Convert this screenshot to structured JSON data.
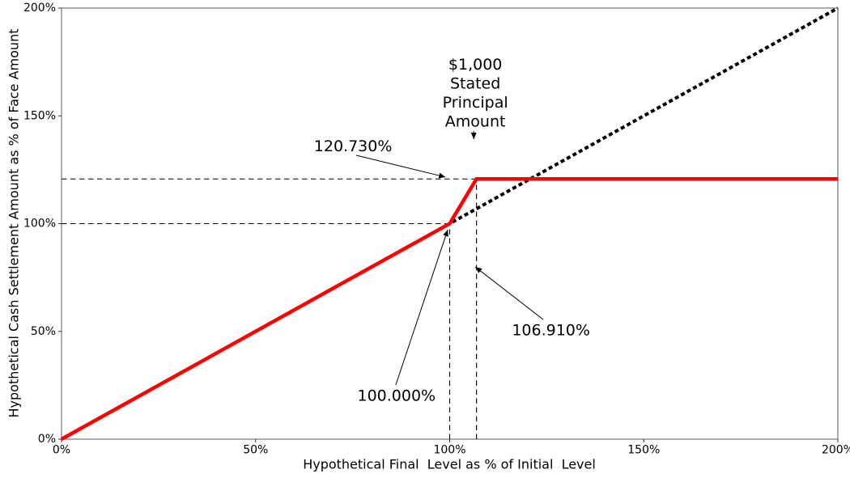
{
  "chart_data": {
    "type": "line",
    "title": "",
    "xlabel": "Hypothetical Final  Level as % of Initial  Level",
    "ylabel": "Hypothetical Cash Settlement Amount as % of Face Amount",
    "xlim": [
      0,
      200
    ],
    "ylim": [
      0,
      200
    ],
    "grid": false,
    "legend": false,
    "x_ticks": {
      "values": [
        0,
        50,
        100,
        150,
        200
      ],
      "labels": [
        "0%",
        "50%",
        "100%",
        "150%",
        "200%"
      ]
    },
    "y_ticks": {
      "values": [
        0,
        50,
        100,
        150,
        200
      ],
      "labels": [
        "0%",
        "50%",
        "100%",
        "150%",
        "200%"
      ]
    },
    "colors": {
      "payoff": "#ff0000",
      "reference": "#000000",
      "guide": "#000000",
      "spine": "#5a5a5a"
    },
    "series": [
      {
        "name": "reference-line-y-equals-x",
        "style": "dashed",
        "color": "#000000",
        "width": 4,
        "dash": "5 3.5",
        "points": [
          [
            0,
            0
          ],
          [
            200,
            200
          ]
        ]
      },
      {
        "name": "cash-settlement-payoff-line",
        "style": "solid",
        "color": "#ff0000",
        "width": 4.5,
        "dash": "",
        "points": [
          [
            0,
            0
          ],
          [
            100,
            100
          ],
          [
            106.91,
            120.73
          ],
          [
            200,
            120.73
          ]
        ]
      }
    ],
    "guides": [
      {
        "name": "cap-level-horizontal-guide",
        "from": [
          0,
          120.73
        ],
        "to": [
          106.91,
          120.73
        ]
      },
      {
        "name": "initial-level-horizontal-guide",
        "from": [
          0,
          100
        ],
        "to": [
          100,
          100
        ]
      },
      {
        "name": "initial-level-vertical-guide",
        "from": [
          100,
          0
        ],
        "to": [
          100,
          100
        ]
      },
      {
        "name": "cap-threshold-vertical-guide",
        "from": [
          106.91,
          0
        ],
        "to": [
          106.91,
          120.73
        ]
      }
    ],
    "annotations": [
      {
        "name": "annotation-cap-settlement-value",
        "lines": [
          "120.730%"
        ],
        "x": 75.1,
        "y": 135.8,
        "arrow": {
          "x1": 75.9,
          "y1": 131.7,
          "x2": 98.9,
          "y2": 121.6
        }
      },
      {
        "name": "annotation-stated-principal",
        "lines": [
          "$1,000",
          "Stated",
          "Principal",
          "Amount"
        ],
        "x": 106.6,
        "y": 160.5,
        "arrow": {
          "x1": 106.2,
          "y1": 143.0,
          "x2": 106.2,
          "y2": 139.2
        }
      },
      {
        "name": "annotation-cap-threshold-level",
        "lines": [
          "106.910%"
        ],
        "x": 126.1,
        "y": 50.5,
        "arrow": {
          "x1": 124.1,
          "y1": 55.5,
          "x2": 106.6,
          "y2": 79.9
        }
      },
      {
        "name": "annotation-initial-level",
        "lines": [
          "100.000%"
        ],
        "x": 86.3,
        "y": 20.1,
        "arrow": {
          "x1": 86.1,
          "y1": 25.1,
          "x2": 99.5,
          "y2": 97.2
        }
      }
    ]
  }
}
